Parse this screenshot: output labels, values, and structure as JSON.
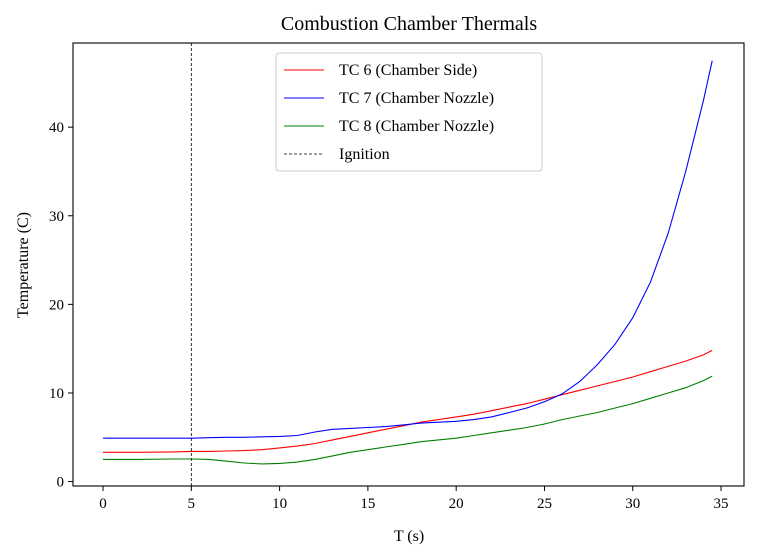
{
  "chart_data": {
    "type": "line",
    "title": "Combustion Chamber Thermals",
    "xlabel": "T (s)",
    "ylabel": "Temperature (C)",
    "xlim": [
      -1.7,
      36.3
    ],
    "ylim": [
      -0.5,
      49.5
    ],
    "xticks": [
      0,
      5,
      10,
      15,
      20,
      25,
      30,
      35
    ],
    "yticks": [
      0,
      10,
      20,
      30,
      40
    ],
    "grid": false,
    "legend_position": "top-center",
    "series": [
      {
        "name": "TC 6 (Chamber Side)",
        "color": "#ff0000",
        "x": [
          0,
          2,
          4,
          5,
          6,
          7,
          8,
          9,
          10,
          11,
          12,
          13,
          14,
          15,
          16,
          17,
          18,
          19,
          20,
          21,
          22,
          23,
          24,
          25,
          26,
          27,
          28,
          29,
          30,
          31,
          32,
          33,
          34,
          34.5
        ],
        "y": [
          3.3,
          3.3,
          3.35,
          3.4,
          3.4,
          3.45,
          3.5,
          3.6,
          3.8,
          4.0,
          4.3,
          4.7,
          5.1,
          5.5,
          5.9,
          6.3,
          6.7,
          7.0,
          7.3,
          7.6,
          8.0,
          8.4,
          8.8,
          9.3,
          9.8,
          10.3,
          10.8,
          11.3,
          11.8,
          12.4,
          13.0,
          13.6,
          14.3,
          14.8
        ]
      },
      {
        "name": "TC 7 (Chamber Nozzle)",
        "color": "#0000ff",
        "x": [
          0,
          2,
          4,
          5,
          6,
          7,
          8,
          9,
          10,
          11,
          12,
          13,
          14,
          15,
          16,
          17,
          18,
          19,
          20,
          21,
          22,
          23,
          24,
          25,
          26,
          27,
          28,
          29,
          30,
          31,
          32,
          33,
          34,
          34.5
        ],
        "y": [
          4.9,
          4.9,
          4.9,
          4.9,
          4.95,
          5.0,
          5.0,
          5.05,
          5.1,
          5.2,
          5.6,
          5.9,
          6.0,
          6.1,
          6.2,
          6.4,
          6.6,
          6.7,
          6.8,
          7.0,
          7.3,
          7.8,
          8.3,
          9.0,
          9.9,
          11.3,
          13.2,
          15.5,
          18.5,
          22.5,
          28.0,
          35.0,
          43.0,
          47.5
        ]
      },
      {
        "name": "TC 8 (Chamber Nozzle)",
        "color": "#008000",
        "x": [
          0,
          2,
          4,
          5,
          6,
          7,
          8,
          9,
          10,
          11,
          12,
          13,
          14,
          15,
          16,
          17,
          18,
          19,
          20,
          21,
          22,
          23,
          24,
          25,
          26,
          27,
          28,
          29,
          30,
          31,
          32,
          33,
          34,
          34.5
        ],
        "y": [
          2.5,
          2.5,
          2.55,
          2.55,
          2.5,
          2.3,
          2.1,
          2.0,
          2.05,
          2.2,
          2.5,
          2.9,
          3.3,
          3.6,
          3.9,
          4.2,
          4.5,
          4.7,
          4.9,
          5.2,
          5.5,
          5.8,
          6.1,
          6.5,
          7.0,
          7.4,
          7.8,
          8.3,
          8.8,
          9.4,
          10.0,
          10.6,
          11.4,
          11.9
        ]
      }
    ],
    "vlines": [
      {
        "name": "Ignition",
        "x": 5,
        "color": "#000000"
      }
    ]
  }
}
